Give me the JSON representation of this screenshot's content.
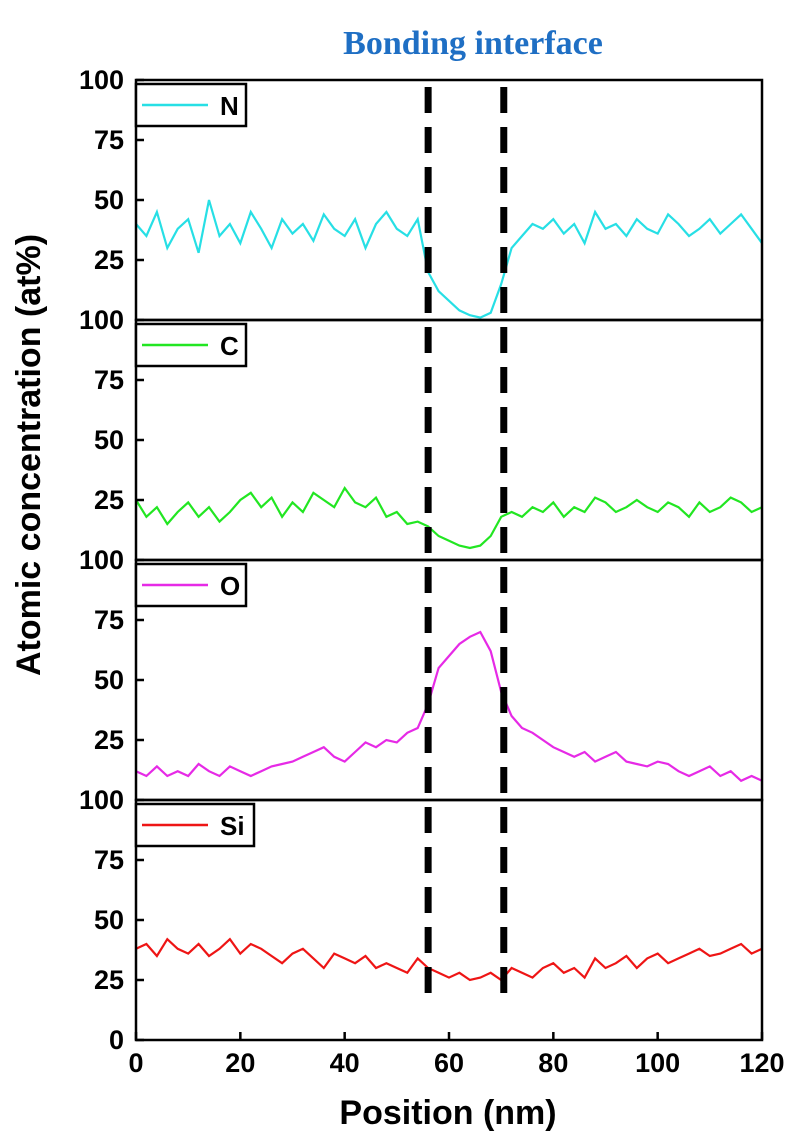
{
  "chart_data": {
    "type": "line",
    "annotation": "Bonding interface",
    "annotation_color": "#1f6fc4",
    "xlabel": "Position (nm)",
    "ylabel": "Atomic concentration (at%)",
    "xlim": [
      0,
      120
    ],
    "xticks": [
      "0",
      "20",
      "40",
      "60",
      "80",
      "100",
      "120"
    ],
    "ylim": [
      0,
      100
    ],
    "yticks": [
      "0",
      "25",
      "50",
      "75",
      "100"
    ],
    "interface_lines_x": [
      56,
      70.5
    ],
    "x": [
      0,
      2,
      4,
      6,
      8,
      10,
      12,
      14,
      16,
      18,
      20,
      22,
      24,
      26,
      28,
      30,
      32,
      34,
      36,
      38,
      40,
      42,
      44,
      46,
      48,
      50,
      52,
      54,
      56,
      58,
      60,
      62,
      64,
      66,
      68,
      70,
      72,
      74,
      76,
      78,
      80,
      82,
      84,
      86,
      88,
      90,
      92,
      94,
      96,
      98,
      100,
      102,
      104,
      106,
      108,
      110,
      112,
      114,
      116,
      118,
      120
    ],
    "panels": [
      {
        "name": "N",
        "color": "#27dfe5",
        "values": [
          40,
          35,
          45,
          30,
          38,
          42,
          28,
          50,
          35,
          40,
          32,
          45,
          38,
          30,
          42,
          36,
          40,
          33,
          44,
          38,
          35,
          42,
          30,
          40,
          45,
          38,
          35,
          42,
          20,
          12,
          8,
          4,
          2,
          1,
          3,
          15,
          30,
          35,
          40,
          38,
          42,
          36,
          40,
          32,
          45,
          38,
          40,
          35,
          42,
          38,
          36,
          44,
          40,
          35,
          38,
          42,
          36,
          40,
          44,
          38,
          32
        ]
      },
      {
        "name": "C",
        "color": "#22e622",
        "values": [
          25,
          18,
          22,
          15,
          20,
          24,
          18,
          22,
          16,
          20,
          25,
          28,
          22,
          26,
          18,
          24,
          20,
          28,
          25,
          22,
          30,
          24,
          22,
          26,
          18,
          20,
          15,
          16,
          14,
          10,
          8,
          6,
          5,
          6,
          10,
          18,
          20,
          18,
          22,
          20,
          24,
          18,
          22,
          20,
          26,
          24,
          20,
          22,
          25,
          22,
          20,
          24,
          22,
          18,
          24,
          20,
          22,
          26,
          24,
          20,
          22
        ]
      },
      {
        "name": "O",
        "color": "#e62ae6",
        "values": [
          12,
          10,
          14,
          10,
          12,
          10,
          15,
          12,
          10,
          14,
          12,
          10,
          12,
          14,
          15,
          16,
          18,
          20,
          22,
          18,
          16,
          20,
          24,
          22,
          25,
          24,
          28,
          30,
          40,
          55,
          60,
          65,
          68,
          70,
          62,
          45,
          35,
          30,
          28,
          25,
          22,
          20,
          18,
          20,
          16,
          18,
          20,
          16,
          15,
          14,
          16,
          15,
          12,
          10,
          12,
          14,
          10,
          12,
          8,
          10,
          8
        ]
      },
      {
        "name": "Si",
        "color": "#ee1515",
        "values": [
          38,
          40,
          35,
          42,
          38,
          36,
          40,
          35,
          38,
          42,
          36,
          40,
          38,
          35,
          32,
          36,
          38,
          34,
          30,
          36,
          34,
          32,
          35,
          30,
          32,
          30,
          28,
          34,
          30,
          28,
          26,
          28,
          25,
          26,
          28,
          25,
          30,
          28,
          26,
          30,
          32,
          28,
          30,
          26,
          34,
          30,
          32,
          35,
          30,
          34,
          36,
          32,
          34,
          36,
          38,
          35,
          36,
          38,
          40,
          36,
          38
        ]
      }
    ]
  }
}
